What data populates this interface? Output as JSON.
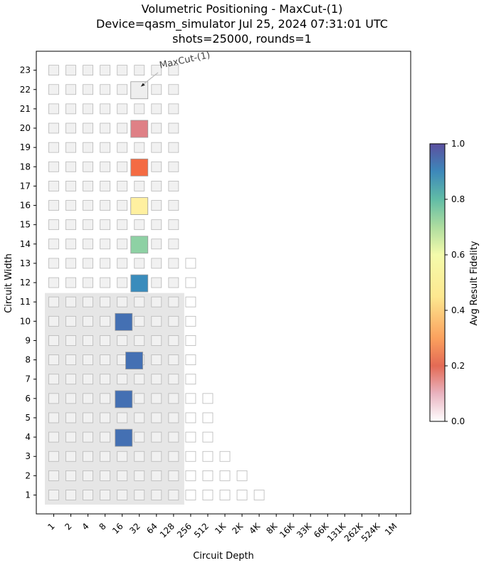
{
  "chart_data": {
    "type": "heatmap",
    "title_lines": [
      "Volumetric Positioning - MaxCut-(1)",
      "Device=qasm_simulator  Jul 25, 2024 07:31:01 UTC",
      "shots=25000, rounds=1"
    ],
    "xlabel": "Circuit Depth",
    "ylabel": "Circuit Width",
    "x_ticks": [
      "1",
      "2",
      "4",
      "8",
      "16",
      "32",
      "64",
      "128",
      "256",
      "512",
      "1K",
      "2K",
      "4K",
      "8K",
      "16K",
      "33K",
      "66K",
      "131K",
      "262K",
      "524K",
      "1M"
    ],
    "y_ticks": [
      1,
      2,
      3,
      4,
      5,
      6,
      7,
      8,
      9,
      10,
      11,
      12,
      13,
      14,
      15,
      16,
      17,
      18,
      19,
      20,
      21,
      22,
      23
    ],
    "colorbar": {
      "label": "Avg Result Fidelity",
      "ticks": [
        0.0,
        0.2,
        0.4,
        0.6,
        0.8,
        1.0
      ],
      "tick_labels": [
        "0.0",
        "0.2",
        "0.4",
        "0.6",
        "0.8",
        "1.0"
      ]
    },
    "annotation": {
      "text": "MaxCut-(1)",
      "points_to_width": 22,
      "points_to_depth": 32
    },
    "quantum_volume_box": {
      "max_width": 11,
      "max_depth": 128
    },
    "volume_max_depth_by_width": [
      {
        "width": 1,
        "max_depth": "4K"
      },
      {
        "width": 2,
        "max_depth": "2K"
      },
      {
        "width": 3,
        "max_depth": "1K"
      },
      {
        "width": 4,
        "max_depth": "512"
      },
      {
        "width": 5,
        "max_depth": "512"
      },
      {
        "width": 6,
        "max_depth": "512"
      },
      {
        "width": 7,
        "max_depth": "256"
      },
      {
        "width": 8,
        "max_depth": "256"
      },
      {
        "width": 9,
        "max_depth": "256"
      },
      {
        "width": 10,
        "max_depth": "256"
      },
      {
        "width": 11,
        "max_depth": "256"
      },
      {
        "width": 12,
        "max_depth": "256"
      },
      {
        "width": 13,
        "max_depth": "256"
      },
      {
        "width": 14,
        "max_depth": "128"
      },
      {
        "width": 15,
        "max_depth": "128"
      },
      {
        "width": 16,
        "max_depth": "128"
      },
      {
        "width": 17,
        "max_depth": "128"
      },
      {
        "width": 18,
        "max_depth": "128"
      },
      {
        "width": 19,
        "max_depth": "128"
      },
      {
        "width": 20,
        "max_depth": "128"
      },
      {
        "width": 21,
        "max_depth": "128"
      },
      {
        "width": 22,
        "max_depth": "128"
      },
      {
        "width": 23,
        "max_depth": "128"
      }
    ],
    "measured_points": [
      {
        "width": 4,
        "depth": 17,
        "fidelity": 0.98,
        "color": "#4470b3"
      },
      {
        "width": 6,
        "depth": 17,
        "fidelity": 0.98,
        "color": "#4470b3"
      },
      {
        "width": 8,
        "depth": 26,
        "fidelity": 0.98,
        "color": "#4470b3"
      },
      {
        "width": 10,
        "depth": 17,
        "fidelity": 0.98,
        "color": "#4470b3"
      },
      {
        "width": 12,
        "depth": 32,
        "fidelity": 0.9,
        "color": "#3a8cbc"
      },
      {
        "width": 14,
        "depth": 32,
        "fidelity": 0.75,
        "color": "#8ed1a4"
      },
      {
        "width": 16,
        "depth": 32,
        "fidelity": 0.45,
        "color": "#fff0a0"
      },
      {
        "width": 18,
        "depth": 32,
        "fidelity": 0.15,
        "color": "#f46b43"
      },
      {
        "width": 20,
        "depth": 32,
        "fidelity": 0.07,
        "color": "#df8086"
      },
      {
        "width": 22,
        "depth": 32,
        "fidelity": 0.0,
        "color": "#eeeeee"
      }
    ],
    "colors": {
      "qv_box": "#e6e6e6",
      "cell_inside": "#f1f1f1",
      "cell_edge": "#b8b8b8",
      "cell_outside": "#ffffff"
    }
  }
}
